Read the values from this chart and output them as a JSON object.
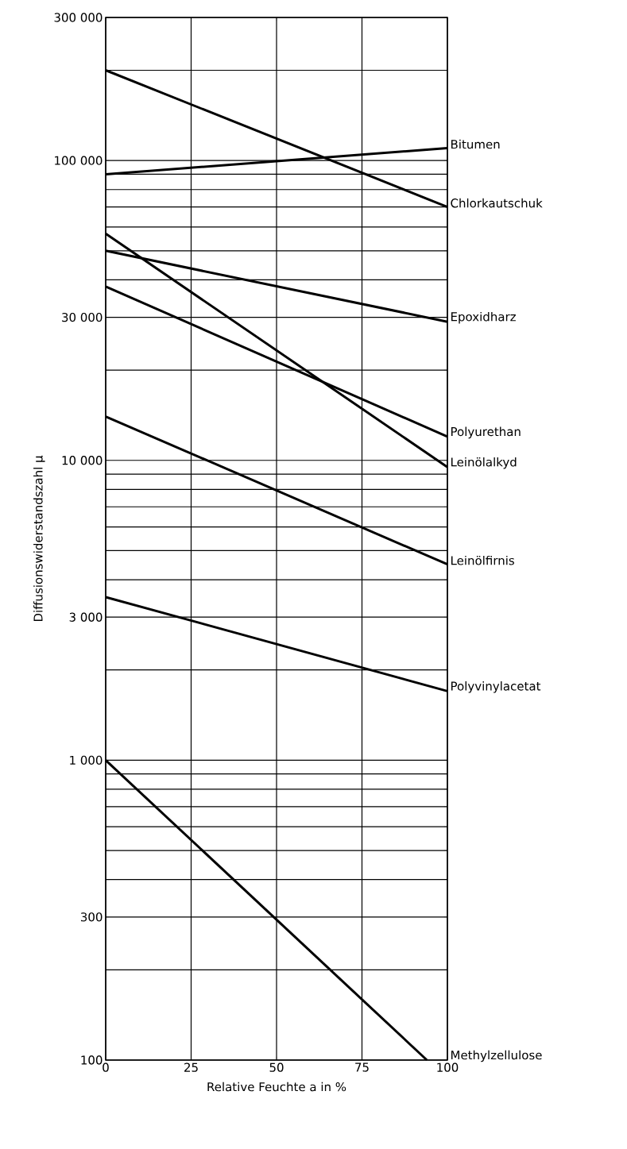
{
  "chart_data": {
    "type": "line",
    "xlabel": "Relative Feuchte a in %",
    "ylabel": "Diffusionswiderstandszahl μ",
    "log": "y",
    "grid": true,
    "legend": "right",
    "marker": "none",
    "line_style": "solid",
    "xlim": [
      0,
      100
    ],
    "xticks": [
      0,
      25,
      50,
      75,
      100
    ],
    "ylim": [
      100,
      300000
    ],
    "yticks": [
      100,
      {
        "value": 200,
        "label": null
      },
      300,
      {
        "value": 400,
        "label": null
      },
      {
        "value": 500,
        "label": null
      },
      {
        "value": 600,
        "label": null
      },
      {
        "value": 700,
        "label": null
      },
      {
        "value": 800,
        "label": null
      },
      {
        "value": 900,
        "label": null
      },
      {
        "value": 1000,
        "label": "1 000"
      },
      {
        "value": 2000,
        "label": null
      },
      {
        "value": 3000,
        "label": "3 000"
      },
      {
        "value": 4000,
        "label": null
      },
      {
        "value": 5000,
        "label": null
      },
      {
        "value": 6000,
        "label": null
      },
      {
        "value": 7000,
        "label": null
      },
      {
        "value": 8000,
        "label": null
      },
      {
        "value": 9000,
        "label": null
      },
      {
        "value": 10000,
        "label": "10 000"
      },
      {
        "value": 20000,
        "label": null
      },
      {
        "value": 30000,
        "label": "30 000"
      },
      {
        "value": 40000,
        "label": null
      },
      {
        "value": 50000,
        "label": null
      },
      {
        "value": 60000,
        "label": null
      },
      {
        "value": 70000,
        "label": null
      },
      {
        "value": 80000,
        "label": null
      },
      {
        "value": 90000,
        "label": null
      },
      {
        "value": 100000,
        "label": "100 000"
      },
      {
        "value": 200000,
        "label": null
      },
      {
        "value": 300000,
        "label": "300 000"
      }
    ],
    "series": [
      {
        "name": "Bitumen",
        "color": "#000000",
        "x": [
          0,
          100
        ],
        "values": [
          90000,
          110000
        ]
      },
      {
        "name": "Chlorkautschuk",
        "color": "#000000",
        "x": [
          0,
          100
        ],
        "values": [
          200000,
          70000
        ]
      },
      {
        "name": "Epoxidharz",
        "color": "#000000",
        "x": [
          0,
          100
        ],
        "values": [
          50000,
          29000
        ]
      },
      {
        "name": "Polyurethan",
        "color": "#000000",
        "x": [
          0,
          100
        ],
        "values": [
          38000,
          12000
        ]
      },
      {
        "name": "Leinölalkyd",
        "color": "#000000",
        "x": [
          0,
          100
        ],
        "values": [
          57000,
          9500
        ]
      },
      {
        "name": "Leinölfirnis",
        "color": "#000000",
        "x": [
          0,
          100
        ],
        "values": [
          14000,
          4500
        ]
      },
      {
        "name": "Polyvinylacetat",
        "color": "#000000",
        "x": [
          0,
          100
        ],
        "values": [
          3500,
          1700
        ]
      },
      {
        "name": "Methylzellulose",
        "color": "#000000",
        "x": [
          0,
          94
        ],
        "values": [
          1000,
          100
        ]
      }
    ]
  }
}
